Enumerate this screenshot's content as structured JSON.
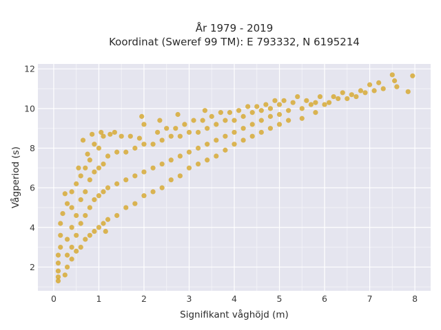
{
  "chart_data": {
    "type": "scatter",
    "title_line1": "År 1979 - 2019",
    "title_line2": "Koordinat (Sweref 99 TM): E 793332, N 6195214",
    "xlabel": "Signifikant våghöjd (m)",
    "ylabel": "Vågperiod (s)",
    "xlim": [
      -0.35,
      8.35
    ],
    "ylim": [
      0.8,
      12.25
    ],
    "x_ticks": [
      "0",
      "1",
      "2",
      "3",
      "4",
      "5",
      "6",
      "7",
      "8"
    ],
    "y_ticks": [
      "2",
      "4",
      "6",
      "8",
      "10",
      "12"
    ],
    "grid": true,
    "plot_background": "#e5e5ef",
    "point_color": "#d4a21c",
    "series": [
      {
        "values": [
          {
            "x": 0.1,
            "y": 1.3
          },
          {
            "x": 0.1,
            "y": 1.5
          },
          {
            "x": 0.1,
            "y": 1.8
          },
          {
            "x": 0.1,
            "y": 2.2
          },
          {
            "x": 0.1,
            "y": 2.6
          },
          {
            "x": 0.15,
            "y": 3.0
          },
          {
            "x": 0.15,
            "y": 3.6
          },
          {
            "x": 0.15,
            "y": 4.2
          },
          {
            "x": 0.2,
            "y": 4.7
          },
          {
            "x": 0.25,
            "y": 1.6
          },
          {
            "x": 0.3,
            "y": 2.0
          },
          {
            "x": 0.3,
            "y": 2.6
          },
          {
            "x": 0.3,
            "y": 3.4
          },
          {
            "x": 0.3,
            "y": 5.2
          },
          {
            "x": 0.4,
            "y": 2.4
          },
          {
            "x": 0.4,
            "y": 3.0
          },
          {
            "x": 0.4,
            "y": 4.0
          },
          {
            "x": 0.4,
            "y": 5.0
          },
          {
            "x": 0.4,
            "y": 5.8
          },
          {
            "x": 0.5,
            "y": 2.8
          },
          {
            "x": 0.5,
            "y": 3.6
          },
          {
            "x": 0.5,
            "y": 4.6
          },
          {
            "x": 0.5,
            "y": 6.2
          },
          {
            "x": 0.6,
            "y": 3.0
          },
          {
            "x": 0.6,
            "y": 4.2
          },
          {
            "x": 0.6,
            "y": 5.4
          },
          {
            "x": 0.6,
            "y": 6.6
          },
          {
            "x": 0.7,
            "y": 3.4
          },
          {
            "x": 0.7,
            "y": 4.6
          },
          {
            "x": 0.7,
            "y": 5.8
          },
          {
            "x": 0.7,
            "y": 7.0
          },
          {
            "x": 0.8,
            "y": 3.6
          },
          {
            "x": 0.8,
            "y": 5.0
          },
          {
            "x": 0.8,
            "y": 6.4
          },
          {
            "x": 0.8,
            "y": 7.4
          },
          {
            "x": 0.9,
            "y": 3.8
          },
          {
            "x": 0.9,
            "y": 5.4
          },
          {
            "x": 0.9,
            "y": 6.8
          },
          {
            "x": 0.9,
            "y": 8.2
          },
          {
            "x": 1.0,
            "y": 4.0
          },
          {
            "x": 1.0,
            "y": 5.6
          },
          {
            "x": 1.0,
            "y": 7.0
          },
          {
            "x": 1.0,
            "y": 8.0
          },
          {
            "x": 1.1,
            "y": 4.2
          },
          {
            "x": 1.1,
            "y": 5.8
          },
          {
            "x": 1.1,
            "y": 7.2
          },
          {
            "x": 1.1,
            "y": 8.6
          },
          {
            "x": 1.2,
            "y": 4.4
          },
          {
            "x": 1.2,
            "y": 6.0
          },
          {
            "x": 1.2,
            "y": 7.6
          },
          {
            "x": 1.25,
            "y": 8.7
          },
          {
            "x": 1.4,
            "y": 4.6
          },
          {
            "x": 1.4,
            "y": 6.2
          },
          {
            "x": 1.4,
            "y": 7.8
          },
          {
            "x": 1.5,
            "y": 8.6
          },
          {
            "x": 1.6,
            "y": 5.0
          },
          {
            "x": 1.6,
            "y": 6.4
          },
          {
            "x": 1.6,
            "y": 7.8
          },
          {
            "x": 1.7,
            "y": 8.6
          },
          {
            "x": 1.8,
            "y": 5.2
          },
          {
            "x": 1.8,
            "y": 6.6
          },
          {
            "x": 1.8,
            "y": 8.0
          },
          {
            "x": 1.9,
            "y": 8.5
          },
          {
            "x": 2.0,
            "y": 5.6
          },
          {
            "x": 2.0,
            "y": 6.8
          },
          {
            "x": 2.0,
            "y": 8.2
          },
          {
            "x": 2.0,
            "y": 9.2
          },
          {
            "x": 2.2,
            "y": 5.8
          },
          {
            "x": 2.2,
            "y": 7.0
          },
          {
            "x": 2.2,
            "y": 8.2
          },
          {
            "x": 2.3,
            "y": 8.8
          },
          {
            "x": 2.4,
            "y": 6.0
          },
          {
            "x": 2.4,
            "y": 7.2
          },
          {
            "x": 2.4,
            "y": 8.4
          },
          {
            "x": 2.5,
            "y": 9.0
          },
          {
            "x": 2.6,
            "y": 6.4
          },
          {
            "x": 2.6,
            "y": 7.4
          },
          {
            "x": 2.6,
            "y": 8.6
          },
          {
            "x": 2.7,
            "y": 9.0
          },
          {
            "x": 2.8,
            "y": 6.6
          },
          {
            "x": 2.8,
            "y": 7.6
          },
          {
            "x": 2.8,
            "y": 8.6
          },
          {
            "x": 2.9,
            "y": 9.2
          },
          {
            "x": 3.0,
            "y": 7.0
          },
          {
            "x": 3.0,
            "y": 7.8
          },
          {
            "x": 3.0,
            "y": 8.8
          },
          {
            "x": 3.1,
            "y": 9.4
          },
          {
            "x": 3.2,
            "y": 7.2
          },
          {
            "x": 3.2,
            "y": 8.0
          },
          {
            "x": 3.2,
            "y": 8.8
          },
          {
            "x": 3.3,
            "y": 9.4
          },
          {
            "x": 3.4,
            "y": 7.4
          },
          {
            "x": 3.4,
            "y": 8.2
          },
          {
            "x": 3.4,
            "y": 9.0
          },
          {
            "x": 3.5,
            "y": 9.6
          },
          {
            "x": 3.6,
            "y": 7.6
          },
          {
            "x": 3.6,
            "y": 8.4
          },
          {
            "x": 3.6,
            "y": 9.2
          },
          {
            "x": 3.7,
            "y": 9.8
          },
          {
            "x": 3.8,
            "y": 7.9
          },
          {
            "x": 3.8,
            "y": 8.6
          },
          {
            "x": 3.8,
            "y": 9.4
          },
          {
            "x": 3.9,
            "y": 9.8
          },
          {
            "x": 4.0,
            "y": 8.2
          },
          {
            "x": 4.0,
            "y": 8.8
          },
          {
            "x": 4.0,
            "y": 9.4
          },
          {
            "x": 4.1,
            "y": 9.9
          },
          {
            "x": 4.2,
            "y": 8.4
          },
          {
            "x": 4.2,
            "y": 9.0
          },
          {
            "x": 4.2,
            "y": 9.6
          },
          {
            "x": 4.3,
            "y": 10.1
          },
          {
            "x": 4.4,
            "y": 8.6
          },
          {
            "x": 4.4,
            "y": 9.2
          },
          {
            "x": 4.4,
            "y": 9.8
          },
          {
            "x": 4.5,
            "y": 10.1
          },
          {
            "x": 4.6,
            "y": 8.8
          },
          {
            "x": 4.6,
            "y": 9.4
          },
          {
            "x": 4.6,
            "y": 9.9
          },
          {
            "x": 4.7,
            "y": 10.2
          },
          {
            "x": 4.8,
            "y": 9.0
          },
          {
            "x": 4.8,
            "y": 9.6
          },
          {
            "x": 4.8,
            "y": 10.0
          },
          {
            "x": 4.9,
            "y": 10.4
          },
          {
            "x": 5.0,
            "y": 9.2
          },
          {
            "x": 5.0,
            "y": 9.7
          },
          {
            "x": 5.0,
            "y": 10.2
          },
          {
            "x": 5.1,
            "y": 10.4
          },
          {
            "x": 5.2,
            "y": 9.4
          },
          {
            "x": 5.2,
            "y": 9.9
          },
          {
            "x": 5.3,
            "y": 10.3
          },
          {
            "x": 5.4,
            "y": 10.6
          },
          {
            "x": 5.5,
            "y": 9.5
          },
          {
            "x": 5.5,
            "y": 10.0
          },
          {
            "x": 5.6,
            "y": 10.4
          },
          {
            "x": 5.7,
            "y": 10.2
          },
          {
            "x": 5.8,
            "y": 9.8
          },
          {
            "x": 5.8,
            "y": 10.3
          },
          {
            "x": 5.9,
            "y": 10.6
          },
          {
            "x": 6.0,
            "y": 10.2
          },
          {
            "x": 6.1,
            "y": 10.3
          },
          {
            "x": 6.2,
            "y": 10.6
          },
          {
            "x": 6.3,
            "y": 10.5
          },
          {
            "x": 6.4,
            "y": 10.8
          },
          {
            "x": 6.5,
            "y": 10.5
          },
          {
            "x": 6.6,
            "y": 10.7
          },
          {
            "x": 6.7,
            "y": 10.6
          },
          {
            "x": 6.8,
            "y": 10.9
          },
          {
            "x": 6.9,
            "y": 10.8
          },
          {
            "x": 7.0,
            "y": 11.2
          },
          {
            "x": 7.1,
            "y": 10.9
          },
          {
            "x": 7.2,
            "y": 11.3
          },
          {
            "x": 7.3,
            "y": 11.0
          },
          {
            "x": 7.5,
            "y": 11.7
          },
          {
            "x": 7.55,
            "y": 11.4
          },
          {
            "x": 7.6,
            "y": 11.1
          },
          {
            "x": 7.85,
            "y": 10.85
          },
          {
            "x": 7.95,
            "y": 11.65
          },
          {
            "x": 0.65,
            "y": 8.4
          },
          {
            "x": 0.85,
            "y": 8.7
          },
          {
            "x": 1.05,
            "y": 8.8
          },
          {
            "x": 1.35,
            "y": 8.8
          },
          {
            "x": 1.95,
            "y": 9.6
          },
          {
            "x": 2.35,
            "y": 9.4
          },
          {
            "x": 2.75,
            "y": 9.7
          },
          {
            "x": 3.35,
            "y": 9.9
          },
          {
            "x": 0.25,
            "y": 5.7
          },
          {
            "x": 0.55,
            "y": 7.0
          },
          {
            "x": 0.75,
            "y": 7.7
          },
          {
            "x": 1.15,
            "y": 3.8
          }
        ]
      }
    ]
  }
}
